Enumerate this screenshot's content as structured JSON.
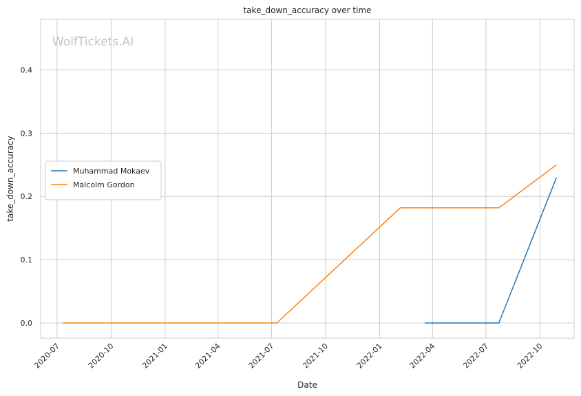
{
  "chart_data": {
    "type": "line",
    "title": "take_down_accuracy over time",
    "xlabel": "Date",
    "ylabel": "take_down_accuracy",
    "watermark": "WolfTickets.AI",
    "x_ticks": [
      "2020-07",
      "2020-10",
      "2021-01",
      "2021-04",
      "2021-07",
      "2021-10",
      "2022-01",
      "2022-04",
      "2022-07",
      "2022-10"
    ],
    "y_ticks": [
      "0.0",
      "0.1",
      "0.2",
      "0.3",
      "0.4"
    ],
    "xlim": [
      "2020-06-03",
      "2022-11-28"
    ],
    "ylim": [
      -0.024,
      0.48
    ],
    "grid": true,
    "legend_position": "center-left",
    "series": [
      {
        "name": "Muhammad Mokaev",
        "color": "#1f77b4",
        "points": [
          {
            "x": "2022-03-19",
            "y": 0.0
          },
          {
            "x": "2022-07-23",
            "y": 0.0
          },
          {
            "x": "2022-10-29",
            "y": 0.23
          }
        ]
      },
      {
        "name": "Malcolm Gordon",
        "color": "#ff7f0e",
        "points": [
          {
            "x": "2020-07-11",
            "y": 0.0
          },
          {
            "x": "2021-07-10",
            "y": 0.0
          },
          {
            "x": "2022-02-05",
            "y": 0.182
          },
          {
            "x": "2022-07-23",
            "y": 0.182
          },
          {
            "x": "2022-10-29",
            "y": 0.25
          }
        ]
      }
    ]
  }
}
